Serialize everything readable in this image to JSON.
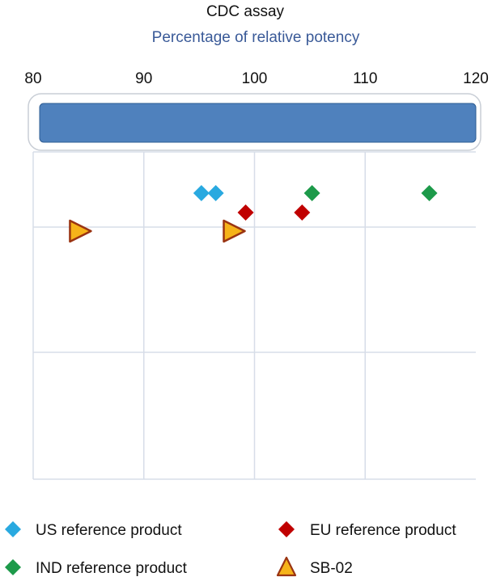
{
  "colors": {
    "subtitle": "#3a5a98",
    "range_bar": "#4f81bd",
    "range_bar_border": "#2e5d93",
    "grid": "#d7dde8",
    "US reference product": "#29a9e0",
    "EU reference product": "#c00000",
    "IND reference product": "#1d9a4a",
    "SB-02_fill": "#f6b319",
    "SB-02_stroke": "#9a3412"
  },
  "chart_data": {
    "type": "scatter",
    "title": "CDC assay",
    "subtitle": "Percentage of relative potency",
    "xlabel": "",
    "ylabel": "",
    "xlim": [
      80,
      120
    ],
    "x_ticks": [
      80,
      90,
      100,
      110,
      120
    ],
    "grid": true,
    "legend_position": "bottom",
    "range_band": {
      "from": 80,
      "to": 120
    },
    "series": [
      {
        "name": "US reference product",
        "marker": "diamond",
        "points": [
          {
            "x": 95.2,
            "row": 1
          },
          {
            "x": 96.5,
            "row": 1
          }
        ]
      },
      {
        "name": "EU reference product",
        "marker": "diamond",
        "points": [
          {
            "x": 99.2,
            "row": 2
          },
          {
            "x": 104.3,
            "row": 2
          }
        ]
      },
      {
        "name": "IND reference product",
        "marker": "diamond",
        "points": [
          {
            "x": 105.2,
            "row": 1
          },
          {
            "x": 115.8,
            "row": 1
          }
        ]
      },
      {
        "name": "SB-02",
        "marker": "triangle",
        "points": [
          {
            "x": 84.2,
            "row": 3
          },
          {
            "x": 98.1,
            "row": 3
          }
        ]
      }
    ]
  }
}
